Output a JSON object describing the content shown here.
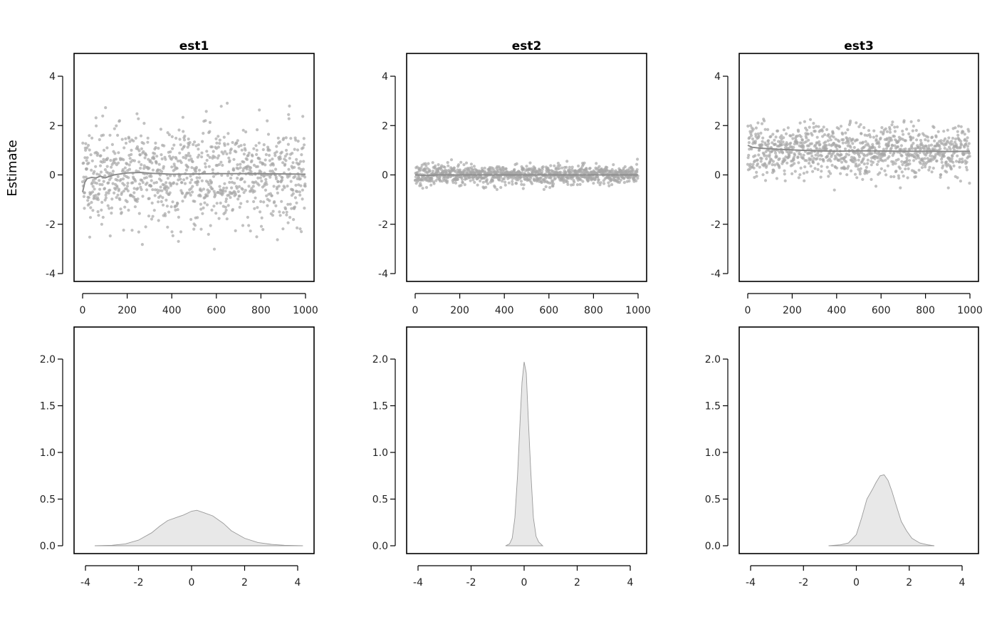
{
  "figure": {
    "ylabel": "Estimate"
  },
  "chart_data": [
    {
      "type": "scatter",
      "title": "est1",
      "xlabel": "",
      "ylabel": "Estimate",
      "xlim": [
        0,
        1000
      ],
      "ylim": [
        -4,
        4
      ],
      "x_ticks": [
        "0",
        "200",
        "400",
        "600",
        "800",
        "1000"
      ],
      "y_ticks": [
        "-4",
        "-2",
        "0",
        "2",
        "4"
      ],
      "points": {
        "n": 1000,
        "mean": 0.0,
        "sd": 1.0,
        "seed": 11
      },
      "running_mean": [
        [
          0,
          -0.7
        ],
        [
          10,
          -0.3
        ],
        [
          20,
          -0.15
        ],
        [
          40,
          -0.1
        ],
        [
          60,
          -0.12
        ],
        [
          80,
          -0.05
        ],
        [
          100,
          -0.12
        ],
        [
          140,
          0.0
        ],
        [
          200,
          0.08
        ],
        [
          260,
          0.1
        ],
        [
          300,
          0.07
        ],
        [
          400,
          0.03
        ],
        [
          500,
          0.04
        ],
        [
          600,
          0.05
        ],
        [
          700,
          0.05
        ],
        [
          800,
          0.05
        ],
        [
          900,
          0.04
        ],
        [
          1000,
          0.03
        ]
      ]
    },
    {
      "type": "scatter",
      "title": "est2",
      "xlabel": "",
      "ylabel": "",
      "xlim": [
        0,
        1000
      ],
      "ylim": [
        -4,
        4
      ],
      "x_ticks": [
        "0",
        "200",
        "400",
        "600",
        "800",
        "1000"
      ],
      "y_ticks": [
        "-4",
        "-2",
        "0",
        "2",
        "4"
      ],
      "points": {
        "n": 1000,
        "mean": 0.0,
        "sd": 0.2,
        "seed": 23
      },
      "running_mean": [
        [
          0,
          0.0
        ],
        [
          50,
          -0.02
        ],
        [
          100,
          0.0
        ],
        [
          300,
          0.0
        ],
        [
          500,
          0.0
        ],
        [
          700,
          0.0
        ],
        [
          900,
          0.0
        ],
        [
          1000,
          0.0
        ]
      ]
    },
    {
      "type": "scatter",
      "title": "est3",
      "xlabel": "",
      "ylabel": "",
      "xlim": [
        0,
        1000
      ],
      "ylim": [
        -4,
        4
      ],
      "x_ticks": [
        "0",
        "200",
        "400",
        "600",
        "800",
        "1000"
      ],
      "y_ticks": [
        "-4",
        "-2",
        "0",
        "2",
        "4"
      ],
      "points": {
        "n": 1000,
        "mean": 1.0,
        "sd": 0.52,
        "seed": 37
      },
      "running_mean": [
        [
          0,
          1.2
        ],
        [
          20,
          1.12
        ],
        [
          60,
          1.08
        ],
        [
          150,
          1.03
        ],
        [
          300,
          0.98
        ],
        [
          400,
          0.96
        ],
        [
          500,
          0.98
        ],
        [
          600,
          0.97
        ],
        [
          700,
          0.96
        ],
        [
          800,
          0.96
        ],
        [
          900,
          0.95
        ],
        [
          1000,
          0.96
        ]
      ]
    },
    {
      "type": "area",
      "title": "",
      "xlabel": "",
      "ylabel": "",
      "xlim": [
        -4,
        4
      ],
      "ylim": [
        0,
        2.2
      ],
      "x_ticks": [
        "-4",
        "-2",
        "0",
        "2",
        "4"
      ],
      "y_ticks": [
        "0.0",
        "0.5",
        "1.0",
        "1.5",
        "2.0"
      ],
      "density": [
        [
          -3.65,
          0.0
        ],
        [
          -3.0,
          0.005
        ],
        [
          -2.5,
          0.02
        ],
        [
          -2.0,
          0.06
        ],
        [
          -1.5,
          0.14
        ],
        [
          -1.2,
          0.21
        ],
        [
          -0.9,
          0.27
        ],
        [
          -0.6,
          0.3
        ],
        [
          -0.3,
          0.33
        ],
        [
          0.0,
          0.37
        ],
        [
          0.2,
          0.38
        ],
        [
          0.5,
          0.35
        ],
        [
          0.8,
          0.32
        ],
        [
          1.2,
          0.24
        ],
        [
          1.5,
          0.16
        ],
        [
          2.0,
          0.08
        ],
        [
          2.5,
          0.035
        ],
        [
          3.0,
          0.015
        ],
        [
          3.5,
          0.005
        ],
        [
          4.2,
          0.0
        ]
      ]
    },
    {
      "type": "area",
      "title": "",
      "xlabel": "",
      "ylabel": "",
      "xlim": [
        -4,
        4
      ],
      "ylim": [
        0,
        2.2
      ],
      "x_ticks": [
        "-4",
        "-2",
        "0",
        "2",
        "4"
      ],
      "y_ticks": [
        "0.0",
        "0.5",
        "1.0",
        "1.5",
        "2.0"
      ],
      "density": [
        [
          -0.7,
          0.0
        ],
        [
          -0.55,
          0.02
        ],
        [
          -0.45,
          0.08
        ],
        [
          -0.35,
          0.3
        ],
        [
          -0.25,
          0.75
        ],
        [
          -0.15,
          1.35
        ],
        [
          -0.08,
          1.75
        ],
        [
          0.0,
          1.97
        ],
        [
          0.08,
          1.85
        ],
        [
          0.15,
          1.4
        ],
        [
          0.25,
          0.8
        ],
        [
          0.35,
          0.3
        ],
        [
          0.45,
          0.1
        ],
        [
          0.55,
          0.04
        ],
        [
          0.7,
          0.0
        ]
      ]
    },
    {
      "type": "area",
      "title": "",
      "xlabel": "",
      "ylabel": "",
      "xlim": [
        -4,
        4
      ],
      "ylim": [
        0,
        2.2
      ],
      "x_ticks": [
        "-4",
        "-2",
        "0",
        "2",
        "4"
      ],
      "y_ticks": [
        "0.0",
        "0.5",
        "1.0",
        "1.5",
        "2.0"
      ],
      "density": [
        [
          -1.05,
          0.0
        ],
        [
          -0.6,
          0.01
        ],
        [
          -0.3,
          0.03
        ],
        [
          0.0,
          0.12
        ],
        [
          0.2,
          0.3
        ],
        [
          0.4,
          0.5
        ],
        [
          0.6,
          0.6
        ],
        [
          0.75,
          0.68
        ],
        [
          0.9,
          0.75
        ],
        [
          1.05,
          0.76
        ],
        [
          1.2,
          0.7
        ],
        [
          1.35,
          0.58
        ],
        [
          1.5,
          0.44
        ],
        [
          1.7,
          0.26
        ],
        [
          1.9,
          0.16
        ],
        [
          2.1,
          0.08
        ],
        [
          2.4,
          0.03
        ],
        [
          2.7,
          0.01
        ],
        [
          2.95,
          0.0
        ]
      ]
    }
  ]
}
